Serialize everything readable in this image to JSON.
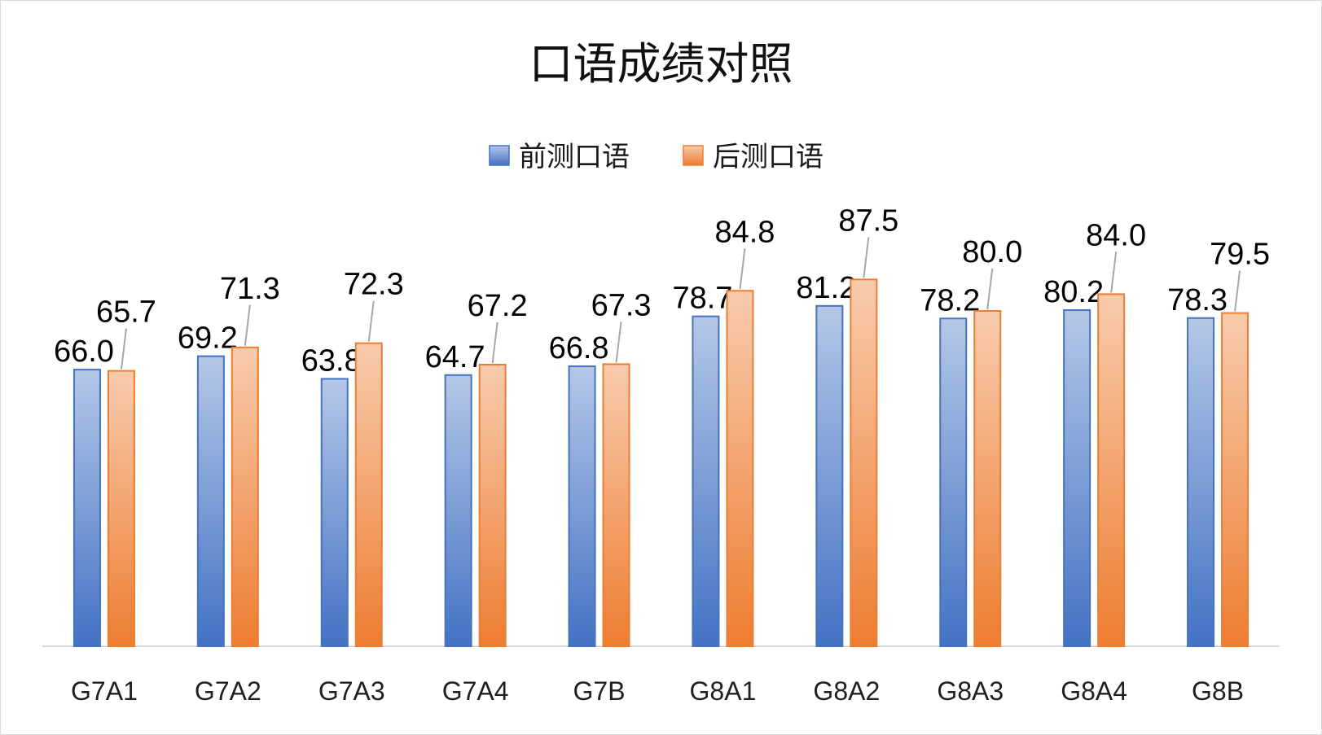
{
  "chart_data": {
    "type": "bar",
    "title": "口语成绩对照",
    "categories": [
      "G7A1",
      "G7A2",
      "G7A3",
      "G7A4",
      "G7B",
      "G8A1",
      "G8A2",
      "G8A3",
      "G8A4",
      "G8B"
    ],
    "series": [
      {
        "name": "前测口语",
        "values": [
          66.0,
          69.2,
          63.8,
          64.7,
          66.8,
          78.7,
          81.2,
          78.2,
          80.2,
          78.3
        ],
        "data_labels": [
          "66.0",
          "69.2",
          "63.8",
          "64.7",
          "66.8",
          "78.7",
          "81.2",
          "78.2",
          "80.2",
          "78.3"
        ],
        "color": "#4472C4",
        "color_light": "#B4C7E7"
      },
      {
        "name": "后测口语",
        "values": [
          65.7,
          71.3,
          72.3,
          67.2,
          67.3,
          84.8,
          87.5,
          80.0,
          84.0,
          79.5
        ],
        "data_labels": [
          "65.7",
          "71.3",
          "72.3",
          "67.2",
          "67.3",
          "84.8",
          "87.5",
          "80.0",
          "84.0",
          "79.5"
        ],
        "color": "#ED7D31",
        "color_light": "#F8CBAD"
      }
    ],
    "xlabel": "",
    "ylabel": "",
    "ylim": [
      0,
      100
    ],
    "grid": false,
    "legend": "top-center"
  }
}
